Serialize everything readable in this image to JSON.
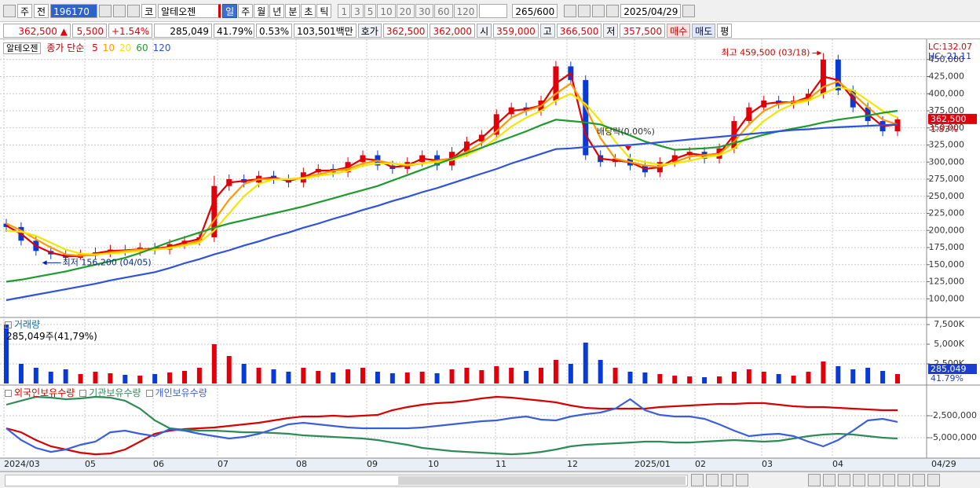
{
  "toolbar": {
    "market": "주",
    "view": "전",
    "code": "196170",
    "exchange": "코",
    "name": "알테오젠",
    "intervals": [
      "일",
      "주",
      "월",
      "년",
      "분",
      "초",
      "틱"
    ],
    "numbers": [
      1,
      3,
      5,
      10,
      20,
      30,
      60,
      120
    ],
    "count": "265/600",
    "date": "2025/04/29"
  },
  "quote": {
    "price": "362,500",
    "arrow": "▲",
    "change": "5,500",
    "change_pct": "+1.54%",
    "volume": "285,049",
    "volume_ratio": "41.79%",
    "turnover": "0.53%",
    "amount": "103,501백만",
    "bid_ask_label": "호가",
    "ask": "362,500",
    "bid": "362,000",
    "open_label": "시",
    "open": "359,000",
    "high_label": "고",
    "high": "366,500",
    "low_label": "저",
    "low": "357,500",
    "buy": "매수",
    "sell": "매도",
    "avg": "평"
  },
  "x_axis": {
    "labels": [
      "2024/03",
      "05",
      "06",
      "07",
      "08",
      "09",
      "10",
      "11",
      "12",
      "2025/01",
      "02",
      "03",
      "04",
      "04/29"
    ]
  },
  "chart_data": [
    {
      "type": "candlestick",
      "name": "알테오젠",
      "legend_prefix": "종가 단순",
      "up_color": "#e0000c",
      "down_color": "#0a3ad6",
      "open": [
        210000,
        205000,
        185000,
        170000,
        165000,
        160000,
        165000,
        168000,
        172000,
        170000,
        175000,
        172000,
        180000,
        185000,
        190000,
        265000,
        275000,
        270000,
        280000,
        275000,
        270000,
        285000,
        290000,
        285000,
        300000,
        310000,
        295000,
        290000,
        300000,
        310000,
        295000,
        315000,
        330000,
        340000,
        370000,
        380000,
        375000,
        390000,
        440000,
        420000,
        310000,
        300000,
        305000,
        295000,
        285000,
        300000,
        310000,
        315000,
        305000,
        320000,
        360000,
        380000,
        390000,
        385000,
        390000,
        400000,
        450000,
        405000,
        380000,
        360000,
        345000
      ],
      "high": [
        217000,
        212000,
        192000,
        177000,
        172000,
        172000,
        175000,
        179000,
        179000,
        182000,
        182000,
        187000,
        192000,
        197000,
        280000,
        282000,
        282000,
        287000,
        287000,
        282000,
        292000,
        297000,
        297000,
        307000,
        317000,
        317000,
        302000,
        307000,
        317000,
        317000,
        322000,
        337000,
        347000,
        377000,
        387000,
        387000,
        397000,
        448000,
        447000,
        427000,
        317000,
        312000,
        312000,
        302000,
        307000,
        317000,
        322000,
        322000,
        327000,
        367000,
        387000,
        397000,
        397000,
        397000,
        407000,
        459500,
        457000,
        412000,
        387000,
        367000,
        366500
      ],
      "low": [
        198000,
        178000,
        163000,
        158000,
        156200,
        157000,
        158000,
        161000,
        163000,
        163000,
        165000,
        165000,
        173000,
        178000,
        183000,
        258000,
        263000,
        263000,
        268000,
        263000,
        263000,
        278000,
        278000,
        278000,
        293000,
        288000,
        283000,
        283000,
        293000,
        288000,
        288000,
        308000,
        323000,
        333000,
        363000,
        368000,
        368000,
        383000,
        413000,
        303000,
        293000,
        293000,
        288000,
        278000,
        278000,
        293000,
        303000,
        298000,
        298000,
        313000,
        353000,
        373000,
        378000,
        378000,
        383000,
        393000,
        398000,
        373000,
        353000,
        338000,
        338000
      ],
      "close": [
        205000,
        185000,
        170000,
        165000,
        160000,
        165000,
        168000,
        172000,
        170000,
        175000,
        172000,
        180000,
        185000,
        190000,
        265000,
        275000,
        270000,
        280000,
        275000,
        270000,
        285000,
        290000,
        285000,
        300000,
        310000,
        295000,
        290000,
        300000,
        310000,
        295000,
        315000,
        330000,
        340000,
        370000,
        380000,
        375000,
        390000,
        440000,
        420000,
        310000,
        300000,
        305000,
        295000,
        285000,
        300000,
        310000,
        315000,
        305000,
        320000,
        360000,
        380000,
        390000,
        385000,
        390000,
        400000,
        450000,
        405000,
        380000,
        360000,
        345000,
        362500
      ],
      "moving_averages": [
        {
          "name": 5,
          "color": "#e00000",
          "values": [
            207000,
            195000,
            177500,
            167500,
            162500,
            162500,
            166500,
            170000,
            171000,
            172500,
            173500,
            176000,
            182500,
            187500,
            245000,
            270000,
            272500,
            275000,
            277500,
            272500,
            277500,
            287500,
            287500,
            292500,
            305000,
            302500,
            292500,
            295000,
            305000,
            302500,
            305000,
            322500,
            335000,
            355000,
            375000,
            377500,
            382500,
            415000,
            430000,
            340000,
            305000,
            302500,
            300000,
            290000,
            292500,
            305000,
            312500,
            310000,
            312500,
            340000,
            370000,
            385000,
            387500,
            387500,
            395000,
            425000,
            420000,
            392500,
            370000,
            352500,
            355000
          ]
        },
        {
          "name": 10,
          "color": "#ff9a00",
          "values": [
            210000,
            200000,
            187000,
            175000,
            165000,
            163000,
            164000,
            168000,
            170000,
            172000,
            172000,
            175000,
            179000,
            185000,
            215000,
            245000,
            268000,
            275000,
            275000,
            275000,
            277000,
            282000,
            287000,
            290000,
            298000,
            302000,
            298000,
            295000,
            298000,
            302000,
            305000,
            315000,
            328000,
            345000,
            365000,
            375000,
            382000,
            400000,
            415000,
            380000,
            335000,
            305000,
            300000,
            295000,
            293000,
            300000,
            308000,
            310000,
            312000,
            330000,
            355000,
            375000,
            385000,
            388000,
            392000,
            410000,
            418000,
            400000,
            380000,
            362000,
            355000
          ]
        },
        {
          "name": 20,
          "color": "#f2e600",
          "values": [
            200000,
            198000,
            192000,
            182000,
            172000,
            166000,
            165000,
            166000,
            168000,
            170000,
            172000,
            174000,
            178000,
            182000,
            200000,
            225000,
            250000,
            268000,
            275000,
            275000,
            276000,
            280000,
            283000,
            287000,
            295000,
            298000,
            298000,
            296000,
            298000,
            300000,
            303000,
            310000,
            320000,
            335000,
            352000,
            365000,
            375000,
            390000,
            400000,
            385000,
            360000,
            330000,
            305000,
            300000,
            296000,
            298000,
            302000,
            307000,
            310000,
            320000,
            340000,
            360000,
            375000,
            385000,
            390000,
            400000,
            410000,
            405000,
            390000,
            375000,
            365000
          ]
        },
        {
          "name": 60,
          "color": "#1f9a2e",
          "values": [
            125000,
            128000,
            132000,
            136000,
            140000,
            145000,
            150000,
            155000,
            160000,
            167000,
            175000,
            183000,
            190000,
            197000,
            204000,
            210000,
            215000,
            220000,
            225000,
            230000,
            235000,
            241000,
            247000,
            253000,
            259000,
            265000,
            273000,
            281000,
            289000,
            297000,
            305000,
            313000,
            321000,
            329000,
            337000,
            345000,
            354000,
            362000,
            360000,
            358000,
            355000,
            347000,
            339000,
            330000,
            324000,
            318000,
            319000,
            320000,
            322000,
            328000,
            334000,
            340000,
            345000,
            349000,
            353000,
            358000,
            362000,
            365000,
            368000,
            372000,
            375000
          ]
        },
        {
          "name": 120,
          "color": "#2f52dc",
          "values": [
            98000,
            102000,
            106000,
            110000,
            114000,
            118000,
            122000,
            127000,
            131000,
            135000,
            139000,
            145000,
            152000,
            158000,
            165000,
            171000,
            178000,
            184000,
            191000,
            197000,
            204000,
            210000,
            217000,
            223000,
            230000,
            236000,
            243000,
            249000,
            256000,
            262000,
            269000,
            276000,
            283000,
            290000,
            298000,
            305000,
            312000,
            319000,
            320000,
            322000,
            323000,
            324000,
            325000,
            327000,
            329000,
            331000,
            333000,
            335000,
            337000,
            339000,
            341000,
            343000,
            345000,
            347000,
            348000,
            350000,
            351000,
            352000,
            353000,
            354000,
            355000
          ]
        }
      ],
      "ylim": [
        75000,
        475000
      ],
      "yticks": [
        {
          "value": 100000,
          "label": "100,000"
        },
        {
          "value": 125000,
          "label": "125,000"
        },
        {
          "value": 150000,
          "label": "150,000"
        },
        {
          "value": 175000,
          "label": "175,000"
        },
        {
          "value": 200000,
          "label": "200,000"
        },
        {
          "value": 225000,
          "label": "225,000"
        },
        {
          "value": 250000,
          "label": "250,000"
        },
        {
          "value": 275000,
          "label": "275,000"
        },
        {
          "value": 300000,
          "label": "300,000"
        },
        {
          "value": 325000,
          "label": "325,000"
        },
        {
          "value": 350000,
          "label": "350,000"
        },
        {
          "value": 375000,
          "label": "375,000"
        },
        {
          "value": 400000,
          "label": "400,000"
        },
        {
          "value": 425000,
          "label": "425,000"
        },
        {
          "value": 450000,
          "label": "450,000"
        }
      ],
      "annotations": {
        "high": "최고 459,500 (03/18)",
        "low": "최저 156,200 (04/05)",
        "ex_dividend": "배당락(0.00%)"
      },
      "lc": "LC:132.07",
      "hc": "HC:-21.11",
      "last_label": "362,500",
      "last_pct": "1.83%"
    },
    {
      "type": "bar",
      "title": "거래량",
      "label": "285,049주(41,79%)",
      "values": [
        7500000,
        2500000,
        2000000,
        1500000,
        1800000,
        1200000,
        1500000,
        1300000,
        1100000,
        1000000,
        1200000,
        1400000,
        1600000,
        2000000,
        5000000,
        3500000,
        2500000,
        2000000,
        1800000,
        1500000,
        2000000,
        1600000,
        1400000,
        1800000,
        2000000,
        1500000,
        1300000,
        1400000,
        1500000,
        1300000,
        1800000,
        2000000,
        1700000,
        2200000,
        2000000,
        1600000,
        2000000,
        3000000,
        2500000,
        5200000,
        3000000,
        2000000,
        1500000,
        1400000,
        1200000,
        1000000,
        900000,
        800000,
        900000,
        1500000,
        1800000,
        1500000,
        1200000,
        1000000,
        1500000,
        2800000,
        2200000,
        1800000,
        2000000,
        1600000,
        1200000
      ],
      "ylim": [
        0,
        8300000
      ],
      "yticks": [
        {
          "value": 2500000,
          "label": "2,500K"
        },
        {
          "value": 5000000,
          "label": "5,000K"
        },
        {
          "value": 7500000,
          "label": "7,500K"
        }
      ],
      "last_label": "285,049",
      "last_pct": "41.79%"
    },
    {
      "type": "line",
      "series": [
        {
          "name": "외국인보유수량",
          "color": "#d60000",
          "values": [
            -3930000,
            -4380000,
            -5270000,
            -5980000,
            -6340000,
            -6700000,
            -6880000,
            -6790000,
            -6340000,
            -5450000,
            -4550000,
            -4200000,
            -4020000,
            -3930000,
            -3840000,
            -3660000,
            -3480000,
            -3300000,
            -3040000,
            -2770000,
            -2590000,
            -2590000,
            -2500000,
            -2590000,
            -2500000,
            -2410000,
            -1880000,
            -1520000,
            -1250000,
            -1070000,
            -980000,
            -800000,
            -540000,
            -360000,
            -450000,
            -630000,
            -800000,
            -980000,
            -1340000,
            -1610000,
            -1700000,
            -1700000,
            -1700000,
            -1700000,
            -1520000,
            -1430000,
            -1340000,
            -1250000,
            -1160000,
            -1160000,
            -1070000,
            -1070000,
            -1250000,
            -1430000,
            -1520000,
            -1520000,
            -1610000,
            -1700000,
            -1790000,
            -1880000,
            -1880000
          ]
        },
        {
          "name": "기관보유수량",
          "color": "#2e8b57",
          "values": [
            -1250000,
            -800000,
            -360000,
            -450000,
            -630000,
            -540000,
            -360000,
            -450000,
            -800000,
            -1700000,
            -3040000,
            -3930000,
            -4110000,
            -4200000,
            -4200000,
            -4290000,
            -4380000,
            -4380000,
            -4460000,
            -4550000,
            -4730000,
            -4820000,
            -4910000,
            -5000000,
            -5090000,
            -5270000,
            -5540000,
            -5800000,
            -6160000,
            -6340000,
            -6520000,
            -6610000,
            -6700000,
            -6790000,
            -6880000,
            -6790000,
            -6610000,
            -6340000,
            -5980000,
            -5800000,
            -5710000,
            -5630000,
            -5540000,
            -5450000,
            -5450000,
            -5540000,
            -5540000,
            -5450000,
            -5360000,
            -5270000,
            -5360000,
            -5450000,
            -5360000,
            -5090000,
            -4820000,
            -4640000,
            -4550000,
            -4640000,
            -4820000,
            -5000000,
            -5090000
          ]
        },
        {
          "name": "개인보유수량",
          "color": "#3a5fd9",
          "values": [
            -3930000,
            -5270000,
            -6160000,
            -6610000,
            -6340000,
            -5800000,
            -5450000,
            -4380000,
            -4200000,
            -4550000,
            -4820000,
            -4020000,
            -4200000,
            -4550000,
            -4820000,
            -5090000,
            -4910000,
            -4550000,
            -4020000,
            -3480000,
            -3300000,
            -3480000,
            -3660000,
            -3840000,
            -3930000,
            -3930000,
            -3930000,
            -3930000,
            -3840000,
            -3660000,
            -3480000,
            -3300000,
            -3130000,
            -3040000,
            -2770000,
            -2590000,
            -2950000,
            -3040000,
            -2590000,
            -2320000,
            -2140000,
            -1700000,
            -630000,
            -1880000,
            -2410000,
            -2590000,
            -2590000,
            -2860000,
            -3480000,
            -4200000,
            -4820000,
            -4640000,
            -4550000,
            -4820000,
            -5450000,
            -5980000,
            -5270000,
            -4200000,
            -3040000,
            -2860000,
            -3210000
          ]
        }
      ],
      "ylim": [
        -7230000,
        800000
      ],
      "yticks": [
        {
          "value": -2500000,
          "label": "-2,500,000"
        },
        {
          "value": -5000000,
          "label": "-5,000,000"
        }
      ]
    }
  ]
}
